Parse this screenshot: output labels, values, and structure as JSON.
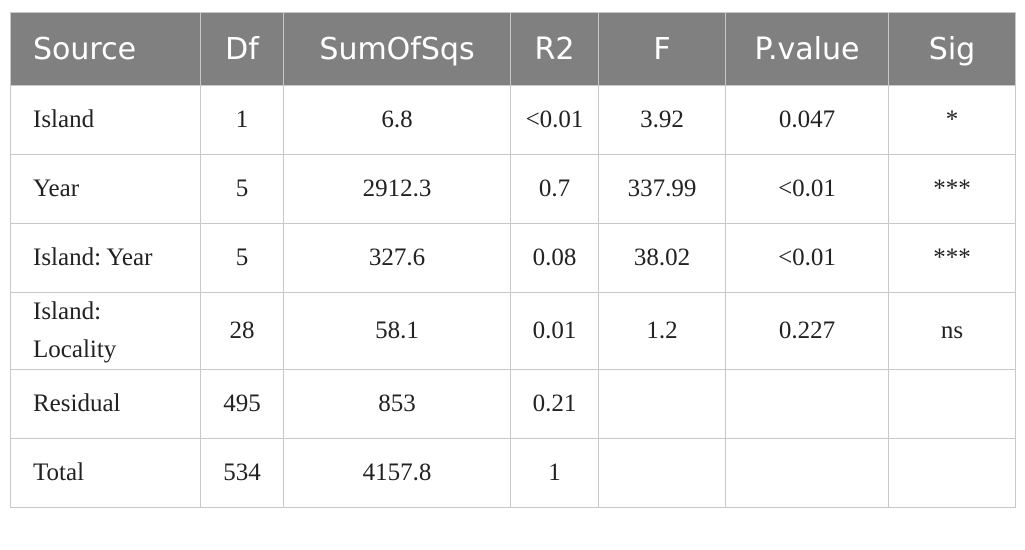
{
  "table": {
    "header": [
      "Source",
      "Df",
      "SumOfSqs",
      "R2",
      "F",
      "P.value",
      "Sig"
    ],
    "rows": [
      [
        "Island",
        "1",
        "6.8",
        "<0.01",
        "3.92",
        "0.047",
        "*"
      ],
      [
        "Year",
        "5",
        "2912.3",
        "0.7",
        "337.99",
        "<0.01",
        "***"
      ],
      [
        "Island: Year",
        "5",
        "327.6",
        "0.08",
        "38.02",
        "<0.01",
        "***"
      ],
      [
        "Island: Locality",
        "28",
        "58.1",
        "0.01",
        "1.2",
        "0.227",
        "ns"
      ],
      [
        "Residual",
        "495",
        "853",
        "0.21"
      ],
      [
        "Total",
        "534",
        "4157.8",
        "1"
      ]
    ]
  }
}
